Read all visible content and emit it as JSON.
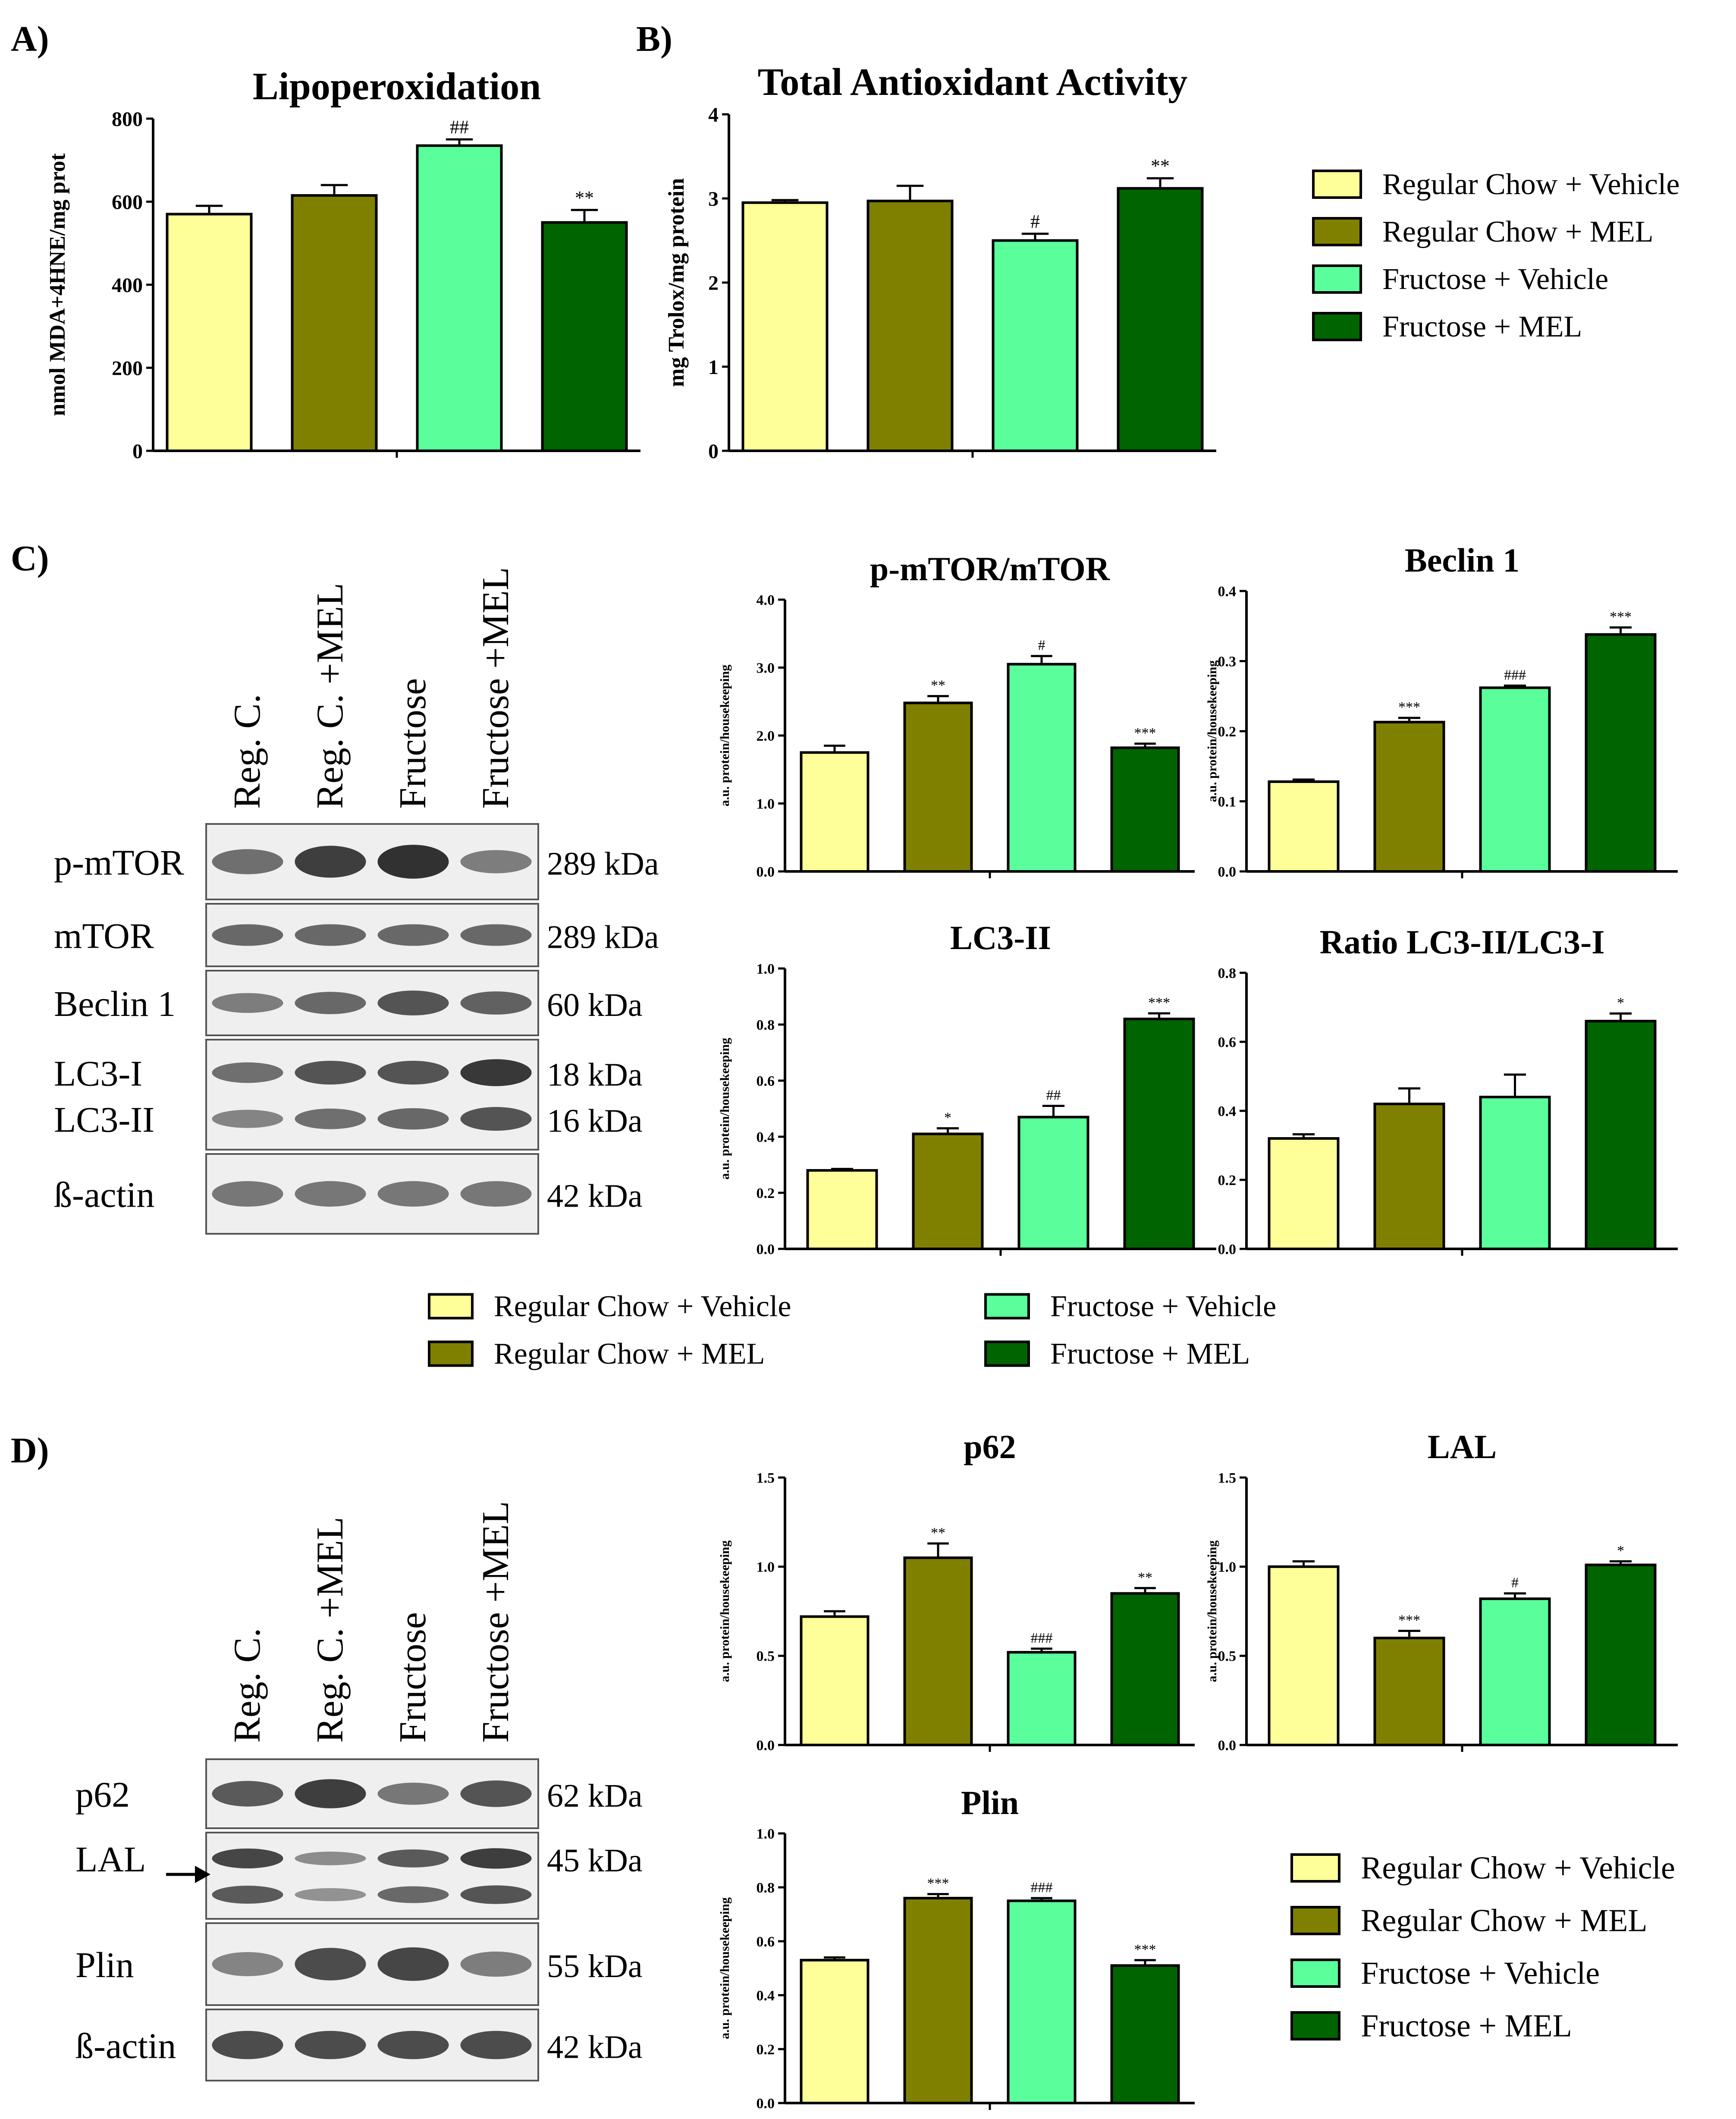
{
  "colors": {
    "rc_vehicle": "#ffff99",
    "rc_mel": "#808000",
    "fr_vehicle": "#5aff9c",
    "fr_mel": "#006400",
    "blot_bg": "#efefef",
    "band": "#262626"
  },
  "legend_entries": [
    {
      "label": "Regular Chow + Vehicle",
      "color_key": "rc_vehicle"
    },
    {
      "label": "Regular Chow + MEL",
      "color_key": "rc_mel"
    },
    {
      "label": "Fructose + Vehicle",
      "color_key": "fr_vehicle"
    },
    {
      "label": "Fructose + MEL",
      "color_key": "fr_mel"
    }
  ],
  "panel_labels": {
    "A": "A)",
    "B": "B)",
    "C": "C)",
    "D": "D)"
  },
  "blots": {
    "C": {
      "lanes": [
        "Reg. C.",
        "Reg. C. +MEL",
        "Fructose",
        "Fructose +MEL"
      ],
      "strips": [
        {
          "proteins": [
            "p-mTOR"
          ],
          "sizes": [
            "289 kDa"
          ],
          "bands": [
            [
              0.55,
              0.9,
              1.0,
              0.45
            ]
          ]
        },
        {
          "proteins": [
            "mTOR"
          ],
          "sizes": [
            "289 kDa"
          ],
          "bands": [
            [
              0.6,
              0.6,
              0.6,
              0.6
            ]
          ]
        },
        {
          "proteins": [
            "Beclin 1"
          ],
          "sizes": [
            "60 kDa"
          ],
          "bands": [
            [
              0.45,
              0.6,
              0.75,
              0.65
            ]
          ]
        },
        {
          "proteins": [
            "LC3-I",
            "LC3-II"
          ],
          "sizes": [
            "18 kDa",
            "16 kDa"
          ],
          "bands": [
            [
              0.55,
              0.75,
              0.75,
              0.95
            ],
            [
              0.4,
              0.55,
              0.6,
              0.75
            ]
          ]
        },
        {
          "proteins": [
            "ß-actin"
          ],
          "sizes": [
            "42 kDa"
          ],
          "bands": [
            [
              0.5,
              0.5,
              0.5,
              0.5
            ]
          ]
        }
      ]
    },
    "D": {
      "lanes": [
        "Reg. C.",
        "Reg. C. +MEL",
        "Fructose",
        "Fructose +MEL"
      ],
      "strips": [
        {
          "proteins": [
            "p62"
          ],
          "sizes": [
            "62 kDa"
          ],
          "bands": [
            [
              0.7,
              0.9,
              0.5,
              0.75
            ]
          ]
        },
        {
          "proteins": [
            "LAL"
          ],
          "sizes": [
            "45 kDa"
          ],
          "bands": [
            [
              0.85,
              0.35,
              0.7,
              0.9
            ],
            [
              0.7,
              0.3,
              0.6,
              0.75
            ]
          ]
        },
        {
          "proteins": [
            "Plin"
          ],
          "sizes": [
            "55 kDa"
          ],
          "bands": [
            [
              0.4,
              0.8,
              0.85,
              0.45
            ]
          ]
        },
        {
          "proteins": [
            "ß-actin"
          ],
          "sizes": [
            "42 kDa"
          ],
          "bands": [
            [
              0.8,
              0.8,
              0.8,
              0.8
            ]
          ]
        }
      ]
    }
  },
  "chart_data": [
    {
      "id": "A",
      "type": "bar",
      "title": "Lipoperoxidation",
      "ylabel": "nmol MDA+4HNE/mg prot",
      "xlabel": "",
      "categories": [
        "Regular Chow + Vehicle",
        "Regular Chow + MEL",
        "Fructose + Vehicle",
        "Fructose + MEL"
      ],
      "values": [
        570,
        615,
        735,
        550
      ],
      "errors": [
        20,
        25,
        15,
        30
      ],
      "annotations": [
        "",
        "",
        "##",
        "**"
      ],
      "ylim": [
        0,
        800
      ],
      "yticks": [
        "0",
        "200",
        "400",
        "600",
        "800"
      ],
      "grid": false
    },
    {
      "id": "B",
      "type": "bar",
      "title": "Total Antioxidant Activity",
      "ylabel": "mg Trolox/mg protein",
      "xlabel": "",
      "categories": [
        "Regular Chow + Vehicle",
        "Regular Chow + MEL",
        "Fructose + Vehicle",
        "Fructose + MEL"
      ],
      "values": [
        2.95,
        2.97,
        2.5,
        3.12
      ],
      "errors": [
        0.03,
        0.18,
        0.08,
        0.12
      ],
      "annotations": [
        "",
        "",
        "#",
        "**"
      ],
      "ylim": [
        0,
        4
      ],
      "yticks": [
        "0",
        "1",
        "2",
        "3",
        "4"
      ],
      "grid": false
    },
    {
      "id": "C1",
      "type": "bar",
      "title": "p-mTOR/mTOR",
      "ylabel": "a.u. protein/housekeeping",
      "xlabel": "",
      "categories": [
        "Regular Chow + Vehicle",
        "Regular Chow + MEL",
        "Fructose + Vehicle",
        "Fructose + MEL"
      ],
      "values": [
        1.75,
        2.48,
        3.05,
        1.82
      ],
      "errors": [
        0.1,
        0.1,
        0.12,
        0.06
      ],
      "annotations": [
        "",
        "**",
        "#",
        "***"
      ],
      "ylim": [
        0,
        4
      ],
      "yticks": [
        "0.0",
        "1.0",
        "2.0",
        "3.0",
        "4.0"
      ],
      "grid": false
    },
    {
      "id": "C2",
      "type": "bar",
      "title": "Beclin 1",
      "ylabel": "a.u. protein/housekeeping",
      "xlabel": "",
      "categories": [
        "Regular Chow + Vehicle",
        "Regular Chow + MEL",
        "Fructose + Vehicle",
        "Fructose + MEL"
      ],
      "values": [
        0.128,
        0.213,
        0.262,
        0.338
      ],
      "errors": [
        0.003,
        0.006,
        0.003,
        0.01
      ],
      "annotations": [
        "",
        "***",
        "###",
        "***"
      ],
      "ylim": [
        0,
        0.4
      ],
      "yticks": [
        "0.0",
        "0.1",
        "0.2",
        "0.3",
        "0.4"
      ],
      "grid": false
    },
    {
      "id": "C3",
      "type": "bar",
      "title": "LC3-II",
      "ylabel": "a.u. protein/housekeeping",
      "xlabel": "",
      "categories": [
        "Regular Chow + Vehicle",
        "Regular Chow + MEL",
        "Fructose + Vehicle",
        "Fructose + MEL"
      ],
      "values": [
        0.28,
        0.41,
        0.47,
        0.82
      ],
      "errors": [
        0.005,
        0.02,
        0.04,
        0.02
      ],
      "annotations": [
        "",
        "*",
        "##",
        "***"
      ],
      "ylim": [
        0,
        1
      ],
      "yticks": [
        "0.0",
        "0.2",
        "0.4",
        "0.6",
        "0.8",
        "1.0"
      ],
      "grid": false
    },
    {
      "id": "C4",
      "type": "bar",
      "title": "Ratio LC3-II/LC3-I",
      "ylabel": "",
      "xlabel": "",
      "categories": [
        "Regular Chow + Vehicle",
        "Regular Chow + MEL",
        "Fructose + Vehicle",
        "Fructose + MEL"
      ],
      "values": [
        0.32,
        0.42,
        0.44,
        0.66
      ],
      "errors": [
        0.012,
        0.045,
        0.065,
        0.022
      ],
      "annotations": [
        "",
        "",
        "",
        "*"
      ],
      "ylim": [
        0,
        0.8
      ],
      "yticks": [
        "0.0",
        "0.2",
        "0.4",
        "0.6",
        "0.8"
      ],
      "grid": false
    },
    {
      "id": "D1",
      "type": "bar",
      "title": "p62",
      "ylabel": "a.u. protein/housekeeping",
      "xlabel": "",
      "categories": [
        "Regular Chow + Vehicle",
        "Regular Chow + MEL",
        "Fructose + Vehicle",
        "Fructose + MEL"
      ],
      "values": [
        0.72,
        1.05,
        0.52,
        0.85
      ],
      "errors": [
        0.03,
        0.08,
        0.02,
        0.03
      ],
      "annotations": [
        "",
        "**",
        "###",
        "**"
      ],
      "ylim": [
        0,
        1.5
      ],
      "yticks": [
        "0.0",
        "0.5",
        "1.0",
        "1.5"
      ],
      "grid": false
    },
    {
      "id": "D2",
      "type": "bar",
      "title": "LAL",
      "ylabel": "a.u. protein/housekeeping",
      "xlabel": "",
      "categories": [
        "Regular Chow + Vehicle",
        "Regular Chow + MEL",
        "Fructose + Vehicle",
        "Fructose + MEL"
      ],
      "values": [
        1.0,
        0.6,
        0.82,
        1.01
      ],
      "errors": [
        0.03,
        0.04,
        0.03,
        0.02
      ],
      "annotations": [
        "",
        "***",
        "#",
        "*"
      ],
      "ylim": [
        0,
        1.5
      ],
      "yticks": [
        "0.0",
        "0.5",
        "1.0",
        "1.5"
      ],
      "grid": false
    },
    {
      "id": "D3",
      "type": "bar",
      "title": "Plin",
      "ylabel": "a.u. protein/housekeeping",
      "xlabel": "",
      "categories": [
        "Regular Chow + Vehicle",
        "Regular Chow + MEL",
        "Fructose + Vehicle",
        "Fructose + MEL"
      ],
      "values": [
        0.53,
        0.76,
        0.75,
        0.51
      ],
      "errors": [
        0.01,
        0.015,
        0.01,
        0.02
      ],
      "annotations": [
        "",
        "***",
        "###",
        "***"
      ],
      "ylim": [
        0,
        1.0
      ],
      "yticks": [
        "0.0",
        "0.2",
        "0.4",
        "0.6",
        "0.8",
        "1.0"
      ],
      "grid": false
    }
  ]
}
